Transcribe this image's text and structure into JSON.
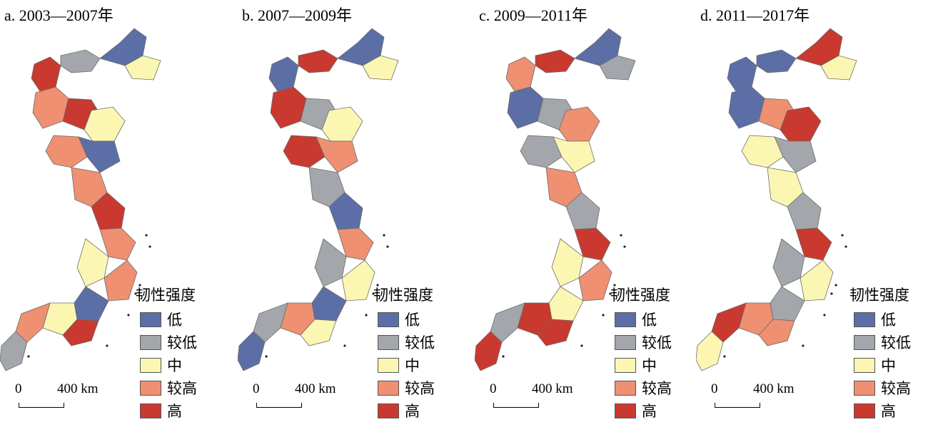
{
  "colors": {
    "low": "#5b6fa6",
    "lower": "#a3a6aa",
    "medium": "#fbf7b2",
    "higher": "#ee9071",
    "high": "#c9392f",
    "border": "#6b6b6b"
  },
  "panels": [
    {
      "title": "a. 2003—2007年",
      "fill_sequence": [
        "high",
        "lower",
        "low",
        "medium",
        "higher",
        "high",
        "medium",
        "higher",
        "low",
        "higher",
        "high",
        "higher",
        "medium",
        "higher",
        "low",
        "medium",
        "higher",
        "high",
        "lower"
      ]
    },
    {
      "title": "b. 2007—2009年",
      "fill_sequence": [
        "low",
        "high",
        "low",
        "medium",
        "high",
        "lower",
        "medium",
        "high",
        "higher",
        "lower",
        "low",
        "higher",
        "lower",
        "medium",
        "low",
        "higher",
        "lower",
        "medium",
        "low"
      ]
    },
    {
      "title": "c. 2009—2011年",
      "fill_sequence": [
        "higher",
        "high",
        "low",
        "lower",
        "low",
        "lower",
        "higher",
        "lower",
        "medium",
        "higher",
        "lower",
        "high",
        "medium",
        "higher",
        "medium",
        "high",
        "lower",
        "high",
        "high"
      ]
    },
    {
      "title": "d. 2011—2017年",
      "fill_sequence": [
        "low",
        "low",
        "high",
        "medium",
        "low",
        "higher",
        "high",
        "medium",
        "lower",
        "medium",
        "lower",
        "high",
        "lower",
        "medium",
        "lower",
        "higher",
        "high",
        "higher",
        "medium"
      ]
    }
  ],
  "legend": {
    "title": "韧性强度",
    "items": [
      {
        "key": "low",
        "label": "低"
      },
      {
        "key": "lower",
        "label": "较低"
      },
      {
        "key": "medium",
        "label": "中"
      },
      {
        "key": "higher",
        "label": "较高"
      },
      {
        "key": "high",
        "label": "高"
      }
    ]
  },
  "scale_bar": {
    "zero_label": "0",
    "max_label": "400 km"
  }
}
